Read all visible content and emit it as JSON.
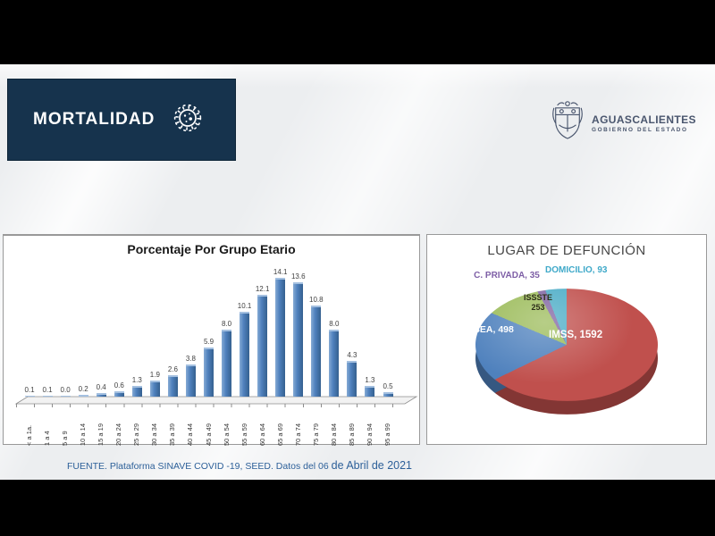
{
  "header": {
    "title": "MORTALIDAD"
  },
  "logo": {
    "name": "AGUASCALIENTES",
    "subtitle": "GOBIERNO DEL ESTADO"
  },
  "footer": {
    "text_main": "FUENTE. Plataforma SINAVE COVID -19, SEED. Datos del 06 ",
    "text_date": "de Abril de 2021"
  },
  "colors": {
    "header_bg": "#16334d",
    "bar_fill": "#4f81bd",
    "footer_text": "#2d6099",
    "logo_text": "#4a566e"
  },
  "icons": {
    "virus": "virus-icon",
    "crest": "state-coat-of-arms-icon"
  },
  "chart_data": [
    {
      "type": "bar",
      "title": "Porcentaje Por Grupo Etario",
      "xlabel": "",
      "ylabel": "",
      "ylim": [
        0,
        15
      ],
      "grid": false,
      "data_labels": true,
      "bar_color": "#4f81bd",
      "categories": [
        "< a 1a.",
        "1 a 4",
        "5 a 9",
        "10 a 14",
        "15 a 19",
        "20 a 24",
        "25 a 29",
        "30 a 34",
        "35 a 39",
        "40 a 44",
        "45 a 49",
        "50 a 54",
        "55 a 59",
        "60 a 64",
        "65 a 69",
        "70 a 74",
        "75 a 79",
        "80 a 84",
        "85 a 89",
        "90 a 94",
        "95 a 99"
      ],
      "values": [
        0.1,
        0.1,
        0.0,
        0.2,
        0.4,
        0.6,
        1.3,
        1.9,
        2.6,
        3.8,
        5.9,
        8.0,
        10.1,
        12.1,
        14.1,
        13.6,
        10.8,
        8.0,
        4.3,
        1.3,
        0.5
      ]
    },
    {
      "type": "pie",
      "title": "LUGAR DE DEFUNCIÓN",
      "effect": "3d",
      "start_angle_deg": 0,
      "direction": "clockwise",
      "legend_position": "data-labels",
      "total": 2471,
      "slices": [
        {
          "label": "IMSS",
          "value": 1592,
          "color": "#c0504d",
          "data_label": "IMSS, 1592",
          "label_color": "#ffffff"
        },
        {
          "label": "ISSEA",
          "value": 498,
          "color": "#4f81bd",
          "data_label": "ISSEA, 498",
          "label_color": "#ffffff"
        },
        {
          "label": "ISSSTE",
          "value": 253,
          "color": "#9bbb59",
          "data_label": "ISSSTE 253",
          "label_color": "#2e2e1a"
        },
        {
          "label": "C. PRIVADA",
          "value": 35,
          "color": "#8064a2",
          "data_label": "C. PRIVADA, 35",
          "label_color": "#7e5fa6"
        },
        {
          "label": "DOMICILIO",
          "value": 93,
          "color": "#4bacc6",
          "data_label": "DOMICILIO, 93",
          "label_color": "#3fa9c9"
        }
      ]
    }
  ]
}
